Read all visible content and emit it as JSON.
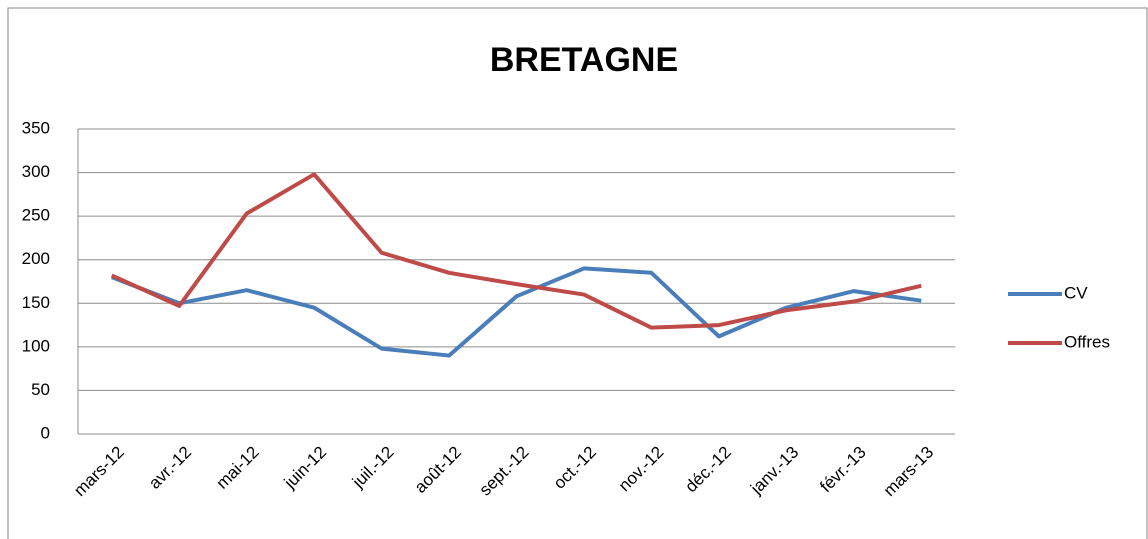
{
  "chart_data": {
    "type": "line",
    "title": "BRETAGNE",
    "categories": [
      "mars-12",
      "avr.-12",
      "mai-12",
      "juin-12",
      "juil.-12",
      "août-12",
      "sept.-12",
      "oct.-12",
      "nov.-12",
      "déc.-12",
      "janv.-13",
      "févr.-13",
      "mars-13"
    ],
    "series": [
      {
        "name": "CV",
        "color": "#4a7ebb",
        "values": [
          180,
          150,
          165,
          145,
          98,
          90,
          158,
          190,
          185,
          112,
          145,
          164,
          153
        ]
      },
      {
        "name": "Offres",
        "color": "#be4b48",
        "values": [
          182,
          147,
          253,
          298,
          208,
          185,
          172,
          160,
          122,
          125,
          142,
          152,
          170
        ]
      }
    ],
    "ylim": [
      0,
      350
    ],
    "yticks": [
      0,
      50,
      100,
      150,
      200,
      250,
      300,
      350
    ],
    "grid": true,
    "legend": "right"
  }
}
